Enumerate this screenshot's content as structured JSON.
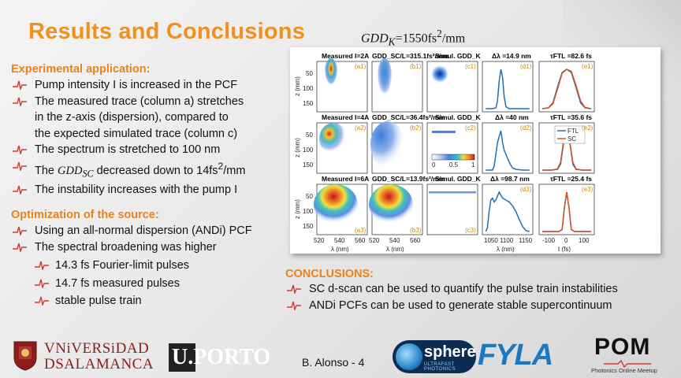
{
  "slide": {
    "title": "Results and Conclusions",
    "gdd_formula": {
      "var": "GDD",
      "sub": "K",
      "rest": "=1550fs",
      "sup": "2",
      "unit": "/mm"
    },
    "sections": [
      {
        "heading": "Experimental application:",
        "bullets": [
          [
            "Pump intensity I is increased in the PCF"
          ],
          [
            "The measured trace (column a) stretches",
            "in the z-axis (dispersion), compared to",
            "the expected simulated trace (column c)"
          ],
          [
            "The spectrum is stretched to 100 nm"
          ],
          [
            "The GDD_SC decreased down to 14fs²/mm"
          ],
          [
            "The instability increases with the pump I"
          ]
        ],
        "gdd_bullet": {
          "pre": "The ",
          "var": "GDD",
          "sub": "SC",
          "post": " decreased down to 14fs",
          "sup": "2",
          "unit": "/mm"
        }
      },
      {
        "heading": "Optimization of the source:",
        "bullets": [
          [
            "Using an all-normal dispersion (ANDi) PCF"
          ],
          [
            "The spectral broadening was higher"
          ]
        ],
        "subbullets": [
          "14.3 fs Fourier-limit pulses",
          "14.7 fs measured pulses",
          "stable pulse train"
        ]
      }
    ],
    "conclusions": {
      "heading": "CONCLUSIONS:",
      "bullets": [
        "SC d-scan can be used to quantify the pulse train instabilities",
        "ANDi PCFs can be used to generate stable supercontinuum"
      ]
    },
    "footer": {
      "uni_salamanca_line1": "VNiVERSiDAD",
      "uni_salamanca_line2": "DSALAMANCA",
      "uporto": "U.PORTO",
      "author_page": "B. Alonso  - 4",
      "sphere": "sphere",
      "sphere_sub": "ULTRAFAST PHOTONICS",
      "fyla": "FYLA",
      "pom": "POM",
      "pom_sub": "Photonics Online Meetup"
    },
    "colors": {
      "title": "#f0901e",
      "section": "#e8821c",
      "bullet_icon": "#d43a2a",
      "ftl": "#1f6fb5",
      "sc": "#d9531e"
    }
  },
  "chart_data": {
    "type": "heatmap",
    "rows": [
      {
        "measured": "Measured I=2A",
        "gddsc": "GDD_SC/L=315.1fs²/mm",
        "simul": "Simul. GDD_K",
        "dlambda": "Δλ =14.9 nm",
        "tau": "τFTL =82.6 fs",
        "labels": [
          "(a1)",
          "(b1)",
          "(c1)",
          "(d1)",
          "(e1)"
        ]
      },
      {
        "measured": "Measured I=4A",
        "gddsc": "GDD_SC/L=36.4fs²/mm",
        "simul": "Simul. GDD_K",
        "dlambda": "Δλ =40 nm",
        "tau": "τFTL =35.6 fs",
        "labels": [
          "(a2)",
          "(b2)",
          "(c2)",
          "(d2)",
          "(e2)"
        ]
      },
      {
        "measured": "Measured I=6A",
        "gddsc": "GDD_SC/L=13.9fs²/mm",
        "simul": "Simul. GDD_K",
        "dlambda": "Δλ =98.7 nm",
        "tau": "τFTL =25.4 fs",
        "labels": [
          "(a3)",
          "(b3)",
          "(c3)",
          "(d3)",
          "(e3)"
        ]
      }
    ],
    "z_axis": {
      "label": "z (mm)",
      "ticks": [
        "50",
        "100",
        "150"
      ]
    },
    "lambda_axis_sc": {
      "label": "λ (nm)",
      "ticks": [
        "520",
        "540",
        "560"
      ]
    },
    "lambda_axis_spec": {
      "label": "λ (nm)",
      "ticks": [
        "1050",
        "1100",
        "1150"
      ]
    },
    "time_axis": {
      "label": "t (fs)",
      "ticks": [
        "-100",
        "0",
        "100"
      ]
    },
    "colorbar": {
      "ticks": [
        "0",
        "0.5",
        "1"
      ]
    },
    "legend": [
      "FTL",
      "SC"
    ],
    "spectra": [
      {
        "x": [
          1040,
          1060,
          1070,
          1075,
          1080,
          1085,
          1090,
          1095,
          1100,
          1110,
          1130,
          1150,
          1170
        ],
        "y": [
          0,
          0,
          0.02,
          0.2,
          0.7,
          1,
          0.8,
          0.3,
          0.05,
          0,
          0,
          0,
          0
        ]
      },
      {
        "x": [
          1040,
          1060,
          1065,
          1070,
          1075,
          1080,
          1085,
          1090,
          1095,
          1100,
          1105,
          1110,
          1115,
          1120,
          1130,
          1150,
          1170
        ],
        "y": [
          0,
          0,
          0.1,
          0.4,
          0.7,
          0.85,
          1,
          0.7,
          0.5,
          0.4,
          0.3,
          0.2,
          0.12,
          0.05,
          0.02,
          0,
          0
        ]
      },
      {
        "x": [
          1040,
          1045,
          1050,
          1055,
          1060,
          1065,
          1070,
          1075,
          1080,
          1090,
          1100,
          1110,
          1120,
          1130,
          1140,
          1150,
          1160,
          1170
        ],
        "y": [
          0,
          0.1,
          0.5,
          0.8,
          0.85,
          0.75,
          0.8,
          0.9,
          1,
          0.85,
          0.8,
          0.75,
          0.65,
          0.5,
          0.3,
          0.12,
          0.02,
          0
        ]
      }
    ],
    "pulses": [
      {
        "t": [
          -160,
          -120,
          -90,
          -60,
          -30,
          0,
          30,
          60,
          90,
          120,
          160
        ],
        "ftl": [
          0,
          0.02,
          0.15,
          0.55,
          0.92,
          1,
          0.92,
          0.55,
          0.15,
          0.02,
          0
        ],
        "sc": [
          0,
          0.02,
          0.12,
          0.5,
          0.9,
          1,
          0.95,
          0.6,
          0.2,
          0.03,
          0
        ]
      },
      {
        "t": [
          -160,
          -100,
          -60,
          -40,
          -20,
          0,
          20,
          40,
          60,
          100,
          160
        ],
        "ftl": [
          0,
          0,
          0.02,
          0.15,
          0.7,
          1,
          0.7,
          0.15,
          0.02,
          0,
          0
        ],
        "sc": [
          0,
          0,
          0.03,
          0.2,
          0.75,
          1,
          0.72,
          0.2,
          0.03,
          0,
          0
        ]
      },
      {
        "t": [
          -160,
          -100,
          -50,
          -30,
          -15,
          0,
          15,
          30,
          50,
          100,
          160
        ],
        "ftl": [
          0,
          0,
          0,
          0.05,
          0.6,
          1,
          0.6,
          0.05,
          0,
          0,
          0
        ],
        "sc": [
          0,
          0,
          0,
          0.06,
          0.62,
          1,
          0.62,
          0.06,
          0,
          0,
          0
        ]
      }
    ]
  }
}
